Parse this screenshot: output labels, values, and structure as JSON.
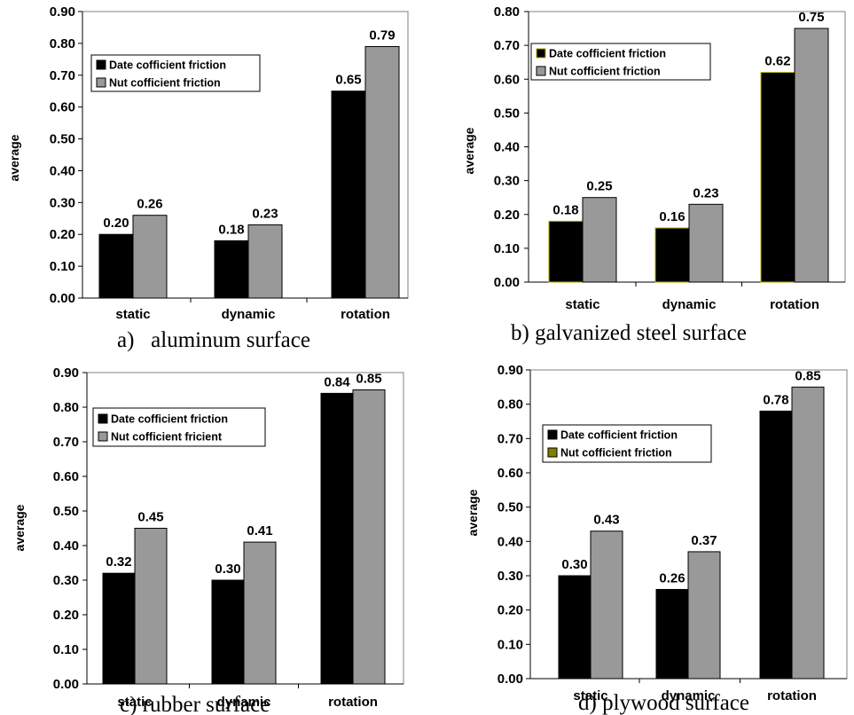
{
  "colors": {
    "date_series": "#000000",
    "nut_series": "#999999",
    "bar_outline_gold": "#b8a800",
    "legend_olive": "#808000",
    "axis": "#000000"
  },
  "chart_data": [
    {
      "type": "bar",
      "caption": "a)   aluminum surface",
      "categories": [
        "static",
        "dynamic",
        "rotation"
      ],
      "series": [
        {
          "name": "Date cofficient friction",
          "values": [
            0.2,
            0.18,
            0.65
          ],
          "labels": [
            "0.20",
            "0.18",
            "0.65"
          ]
        },
        {
          "name": "Nut cofficient friction",
          "values": [
            0.26,
            0.23,
            0.79
          ],
          "labels": [
            "0.26",
            "0.23",
            "0.79"
          ]
        }
      ],
      "ylabel": "average",
      "ylim": [
        0,
        0.9
      ],
      "yticks": [
        "0.00",
        "0.10",
        "0.20",
        "0.30",
        "0.40",
        "0.50",
        "0.60",
        "0.70",
        "0.80",
        "0.90"
      ],
      "legend_position": "upper-left",
      "grid": false
    },
    {
      "type": "bar",
      "caption": "b) galvanized steel surface",
      "categories": [
        "static",
        "dynamic",
        "rotation"
      ],
      "series": [
        {
          "name": "Date cofficient friction",
          "values": [
            0.18,
            0.16,
            0.62
          ],
          "labels": [
            "0.18",
            "0.16",
            "0.62"
          ]
        },
        {
          "name": "Nut cofficient friction",
          "values": [
            0.25,
            0.23,
            0.75
          ],
          "labels": [
            "0.25",
            "0.23",
            "0.75"
          ]
        }
      ],
      "ylabel": "average",
      "ylim": [
        0,
        0.8
      ],
      "yticks": [
        "0.00",
        "0.10",
        "0.20",
        "0.30",
        "0.40",
        "0.50",
        "0.60",
        "0.70",
        "0.80"
      ],
      "legend_position": "upper-left",
      "grid": false
    },
    {
      "type": "bar",
      "caption": "c) rubber surface",
      "categories": [
        "static",
        "dynamic",
        "rotation"
      ],
      "series": [
        {
          "name": "Date cofficient friction",
          "values": [
            0.32,
            0.3,
            0.84
          ],
          "labels": [
            "0.32",
            "0.30",
            "0.84"
          ]
        },
        {
          "name": "Nut cofficient fricient",
          "values": [
            0.45,
            0.41,
            0.85
          ],
          "labels": [
            "0.45",
            "0.41",
            "0.85"
          ]
        }
      ],
      "ylabel": "average",
      "ylim": [
        0,
        0.9
      ],
      "yticks": [
        "0.00",
        "0.10",
        "0.20",
        "0.30",
        "0.40",
        "0.50",
        "0.60",
        "0.70",
        "0.80",
        "0.90"
      ],
      "legend_position": "upper-left",
      "grid": false
    },
    {
      "type": "bar",
      "caption": "d) plywood surface",
      "categories": [
        "static",
        "dynamic",
        "rotation"
      ],
      "series": [
        {
          "name": "Date cofficient friction",
          "values": [
            0.3,
            0.26,
            0.78
          ],
          "labels": [
            "0.30",
            "0.26",
            "0.78"
          ]
        },
        {
          "name": "Nut cofficient friction",
          "values": [
            0.43,
            0.37,
            0.85
          ],
          "labels": [
            "0.43",
            "0.37",
            "0.85"
          ]
        }
      ],
      "ylabel": "average",
      "ylim": [
        0,
        0.9
      ],
      "yticks": [
        "0.00",
        "0.10",
        "0.20",
        "0.30",
        "0.40",
        "0.50",
        "0.60",
        "0.70",
        "0.80",
        "0.90"
      ],
      "legend_position": "upper-left",
      "grid": false
    }
  ]
}
